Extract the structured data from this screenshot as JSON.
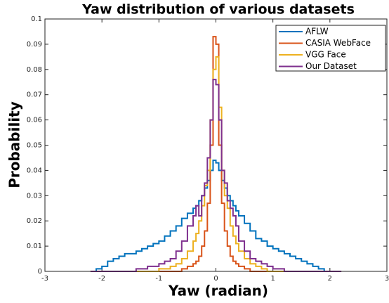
{
  "chart_data": {
    "type": "histogram",
    "title": "Yaw distribution of various datasets",
    "xlabel": "Yaw (radian)",
    "ylabel": "Probability",
    "bins": [
      -2.2,
      -2.1,
      -2.0,
      -1.9,
      -1.8,
      -1.7,
      -1.6,
      -1.5,
      -1.4,
      -1.3,
      -1.2,
      -1.1,
      -1.0,
      -0.9,
      -0.8,
      -0.7,
      -0.6,
      -0.5,
      -0.4,
      -0.35,
      -0.3,
      -0.25,
      -0.2,
      -0.15,
      -0.1,
      -0.05,
      0,
      0.05,
      0.1,
      0.15,
      0.2,
      0.25,
      0.3,
      0.35,
      0.4,
      0.5,
      0.6,
      0.7,
      0.8,
      0.9,
      1.0,
      1.1,
      1.2,
      1.3,
      1.4,
      1.5,
      1.6,
      1.7,
      1.8,
      1.9,
      2.0,
      2.1,
      2.2
    ],
    "series": [
      {
        "name": "AFLW",
        "color": "#0072bd",
        "values": [
          0,
          0.001,
          0.002,
          0.004,
          0.005,
          0.006,
          0.007,
          0.007,
          0.008,
          0.009,
          0.01,
          0.011,
          0.012,
          0.014,
          0.016,
          0.018,
          0.021,
          0.023,
          0.025,
          0.026,
          0.028,
          0.03,
          0.033,
          0.036,
          0.04,
          0.044,
          0.043,
          0.04,
          0.036,
          0.033,
          0.03,
          0.028,
          0.026,
          0.024,
          0.022,
          0.019,
          0.016,
          0.013,
          0.012,
          0.01,
          0.009,
          0.008,
          0.007,
          0.006,
          0.005,
          0.004,
          0.003,
          0.002,
          0.001,
          0,
          0,
          0
        ]
      },
      {
        "name": "CASIA WebFace",
        "color": "#d95319",
        "values": [
          0,
          0,
          0,
          0,
          0,
          0,
          0,
          0,
          0,
          0,
          0,
          0,
          0,
          0,
          0,
          0,
          0.001,
          0.002,
          0.003,
          0.004,
          0.006,
          0.01,
          0.016,
          0.027,
          0.05,
          0.093,
          0.09,
          0.05,
          0.027,
          0.016,
          0.01,
          0.006,
          0.004,
          0.003,
          0.002,
          0.001,
          0,
          0,
          0,
          0,
          0,
          0,
          0,
          0,
          0,
          0,
          0,
          0,
          0,
          0,
          0,
          0
        ]
      },
      {
        "name": "VGG Face",
        "color": "#edb120",
        "values": [
          0,
          0,
          0,
          0,
          0,
          0,
          0,
          0,
          0,
          0,
          0,
          0,
          0.001,
          0.001,
          0.002,
          0.003,
          0.005,
          0.008,
          0.012,
          0.015,
          0.02,
          0.026,
          0.034,
          0.04,
          0.06,
          0.08,
          0.085,
          0.065,
          0.04,
          0.03,
          0.025,
          0.018,
          0.014,
          0.011,
          0.008,
          0.005,
          0.003,
          0.002,
          0.001,
          0,
          0,
          0,
          0,
          0,
          0,
          0,
          0,
          0,
          0,
          0,
          0,
          0
        ]
      },
      {
        "name": "Our Dataset",
        "color": "#7e2f8e",
        "values": [
          0,
          0,
          0,
          0,
          0,
          0,
          0,
          0,
          0.001,
          0.001,
          0.002,
          0.002,
          0.003,
          0.004,
          0.005,
          0.008,
          0.012,
          0.018,
          0.022,
          0.026,
          0.022,
          0.03,
          0.035,
          0.045,
          0.06,
          0.076,
          0.074,
          0.06,
          0.04,
          0.035,
          0.028,
          0.025,
          0.022,
          0.018,
          0.012,
          0.008,
          0.005,
          0.004,
          0.003,
          0.002,
          0.001,
          0.001,
          0,
          0,
          0,
          0,
          0,
          0,
          0,
          0,
          0,
          0
        ]
      }
    ],
    "xlim": [
      -3,
      3
    ],
    "ylim": [
      0,
      0.1
    ],
    "xticks": [
      -3,
      -2,
      -1,
      0,
      1,
      2,
      3
    ],
    "yticks": [
      0,
      0.01,
      0.02,
      0.03,
      0.04,
      0.05,
      0.06,
      0.07,
      0.08,
      0.09,
      0.1
    ],
    "legend": "upper right"
  }
}
